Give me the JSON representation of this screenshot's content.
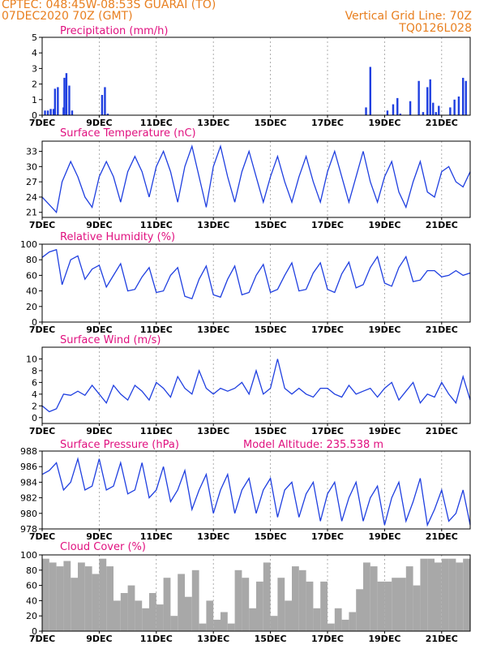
{
  "header": {
    "line1_left": "CPTEC:   048:45W-08:53S   GUARAI (TO)",
    "line2_left": "07DEC2020 70Z (GMT)",
    "line2_right": "Vertical Grid Line: 70Z",
    "line3_right": "TQ0126L028"
  },
  "colors": {
    "header": "#e87f1f",
    "title": "#e0107f",
    "series": "#1f3fe0",
    "cloud": "#a8a8a8"
  },
  "x_ticks": [
    "7DEC",
    "9DEC",
    "11DEC",
    "13DEC",
    "15DEC",
    "17DEC",
    "19DEC",
    "21DEC"
  ],
  "chart_data": [
    {
      "type": "bar",
      "title": "Precipitation (mm/h)",
      "ylim": [
        0,
        5
      ],
      "yticks": [
        "0",
        "1",
        "2",
        "3",
        "4",
        "5"
      ],
      "x_days": [
        0.1,
        0.2,
        0.3,
        0.4,
        0.45,
        0.55,
        0.75,
        0.78,
        0.85,
        0.95,
        1.05,
        2.1,
        2.2,
        2.3,
        11.35,
        11.5,
        12.1,
        12.3,
        12.45,
        12.55,
        12.9,
        13.2,
        13.35,
        13.5,
        13.6,
        13.7,
        13.8,
        13.9,
        14.3,
        14.45,
        14.6,
        14.75,
        14.85
      ],
      "values": [
        0.3,
        0.3,
        0.4,
        0.4,
        1.7,
        1.8,
        0.5,
        2.4,
        2.7,
        1.9,
        0.3,
        1.3,
        1.8,
        0.1,
        0.5,
        3.1,
        0.3,
        0.7,
        1.1,
        0.1,
        0.9,
        2.2,
        0.2,
        1.8,
        2.3,
        0.8,
        0.2,
        0.6,
        0.5,
        1.0,
        1.2,
        2.4,
        2.2
      ]
    },
    {
      "type": "line",
      "title": "Surface Temperature (nC)",
      "ylim": [
        20,
        35
      ],
      "yticks": [
        "21",
        "24",
        "27",
        "30",
        "33"
      ],
      "x_days": [
        0,
        0.25,
        0.5,
        0.7,
        1,
        1.25,
        1.5,
        1.75,
        2,
        2.25,
        2.5,
        2.75,
        3,
        3.25,
        3.5,
        3.75,
        4,
        4.25,
        4.5,
        4.75,
        5,
        5.25,
        5.5,
        5.75,
        6,
        6.25,
        6.5,
        6.75,
        7,
        7.25,
        7.5,
        7.75,
        8,
        8.25,
        8.5,
        8.75,
        9,
        9.25,
        9.5,
        9.75,
        10,
        10.25,
        10.5,
        10.75,
        11,
        11.25,
        11.5,
        11.75,
        12,
        12.25,
        12.5,
        12.75,
        13,
        13.25,
        13.5,
        13.75,
        14,
        14.25,
        14.5,
        14.75,
        15
      ],
      "values": [
        24,
        22.5,
        21,
        27,
        31,
        28,
        24,
        22,
        28,
        31,
        28,
        23,
        29,
        32,
        29,
        24,
        30,
        33,
        29,
        23,
        30,
        34,
        28,
        22,
        30,
        34,
        28,
        23,
        29,
        33,
        28,
        23,
        28,
        32,
        27,
        23,
        28,
        32,
        27,
        23,
        29,
        33,
        28,
        23,
        28,
        33,
        27,
        23,
        28,
        31,
        25,
        22,
        27,
        31,
        25,
        24,
        29,
        30,
        27,
        26,
        29
      ]
    },
    {
      "type": "line",
      "title": "Relative Humidity (%)",
      "ylim": [
        0,
        100
      ],
      "yticks": [
        "0",
        "20",
        "40",
        "60",
        "80",
        "100"
      ],
      "x_days": [
        0,
        0.25,
        0.5,
        0.7,
        1,
        1.25,
        1.5,
        1.75,
        2,
        2.25,
        2.5,
        2.75,
        3,
        3.25,
        3.5,
        3.75,
        4,
        4.25,
        4.5,
        4.75,
        5,
        5.25,
        5.5,
        5.75,
        6,
        6.25,
        6.5,
        6.75,
        7,
        7.25,
        7.5,
        7.75,
        8,
        8.25,
        8.5,
        8.75,
        9,
        9.25,
        9.5,
        9.75,
        10,
        10.25,
        10.5,
        10.75,
        11,
        11.25,
        11.5,
        11.75,
        12,
        12.25,
        12.5,
        12.75,
        13,
        13.25,
        13.5,
        13.75,
        14,
        14.25,
        14.5,
        14.75,
        15
      ],
      "values": [
        83,
        90,
        93,
        48,
        80,
        85,
        55,
        68,
        73,
        45,
        60,
        75,
        40,
        42,
        58,
        70,
        38,
        40,
        60,
        70,
        33,
        30,
        55,
        72,
        35,
        32,
        55,
        72,
        35,
        38,
        60,
        74,
        38,
        42,
        60,
        76,
        40,
        42,
        63,
        76,
        42,
        38,
        62,
        77,
        44,
        48,
        70,
        84,
        50,
        46,
        70,
        84,
        52,
        54,
        66,
        66,
        58,
        60,
        66,
        60,
        63
      ]
    },
    {
      "type": "line",
      "title": "Surface Wind (m/s)",
      "ylim": [
        -1,
        12
      ],
      "yticks": [
        "0",
        "2",
        "4",
        "6",
        "8",
        "10"
      ],
      "x_days": [
        0,
        0.25,
        0.5,
        0.75,
        1,
        1.25,
        1.5,
        1.75,
        2,
        2.25,
        2.5,
        2.75,
        3,
        3.25,
        3.5,
        3.75,
        4,
        4.25,
        4.5,
        4.75,
        5,
        5.25,
        5.5,
        5.75,
        6,
        6.25,
        6.5,
        6.75,
        7,
        7.25,
        7.5,
        7.75,
        8,
        8.25,
        8.5,
        8.75,
        9,
        9.25,
        9.5,
        9.75,
        10,
        10.25,
        10.5,
        10.75,
        11,
        11.25,
        11.5,
        11.75,
        12,
        12.25,
        12.5,
        12.75,
        13,
        13.25,
        13.5,
        13.75,
        14,
        14.25,
        14.5,
        14.75,
        15
      ],
      "values": [
        2,
        1,
        1.5,
        4,
        3.8,
        4.5,
        3.8,
        5.5,
        4,
        2.5,
        5.5,
        4,
        3,
        5.5,
        4.5,
        3,
        6,
        5,
        3.5,
        7,
        5,
        4,
        8,
        5,
        4,
        5,
        4.5,
        5,
        6,
        4,
        8,
        4,
        5,
        10,
        5,
        4,
        5,
        4,
        3.5,
        5,
        5,
        4,
        3.5,
        5.5,
        4,
        4.5,
        5,
        3.5,
        5,
        6,
        3,
        4.5,
        6,
        2.5,
        4,
        3.5,
        6,
        4,
        2.5,
        7,
        3
      ]
    },
    {
      "type": "line",
      "title": "Surface Pressure (hPa)",
      "annotation": "Model Altitude: 235.538 m",
      "ylim": [
        978,
        988
      ],
      "yticks": [
        "978",
        "980",
        "982",
        "984",
        "986",
        "988"
      ],
      "x_days": [
        0,
        0.25,
        0.5,
        0.75,
        1,
        1.25,
        1.5,
        1.75,
        2,
        2.25,
        2.5,
        2.75,
        3,
        3.25,
        3.5,
        3.75,
        4,
        4.25,
        4.5,
        4.75,
        5,
        5.25,
        5.5,
        5.75,
        6,
        6.25,
        6.5,
        6.75,
        7,
        7.25,
        7.5,
        7.75,
        8,
        8.25,
        8.5,
        8.75,
        9,
        9.25,
        9.5,
        9.75,
        10,
        10.25,
        10.5,
        10.75,
        11,
        11.25,
        11.5,
        11.75,
        12,
        12.25,
        12.5,
        12.75,
        13,
        13.25,
        13.5,
        13.75,
        14,
        14.25,
        14.5,
        14.75,
        15
      ],
      "values": [
        985,
        985.5,
        986.5,
        983,
        984,
        987,
        983,
        983.5,
        987,
        983,
        983.5,
        986.5,
        982.5,
        983,
        986.5,
        982,
        983,
        986,
        981.5,
        983,
        985.5,
        980.5,
        983,
        985,
        980,
        983,
        985,
        980,
        983,
        984.5,
        980,
        983,
        984.5,
        979.5,
        983,
        984,
        979.5,
        982.5,
        984,
        979,
        982.5,
        984,
        979,
        982,
        984,
        979,
        982,
        983.5,
        978.5,
        982,
        984,
        979,
        981.5,
        984.5,
        978.5,
        980.5,
        983,
        979,
        980,
        983,
        978.5
      ]
    },
    {
      "type": "area",
      "title": "Cloud Cover (%)",
      "ylim": [
        0,
        100
      ],
      "yticks": [
        "0",
        "20",
        "40",
        "60",
        "80",
        "100"
      ],
      "x_days": [
        0,
        0.25,
        0.5,
        0.75,
        1,
        1.25,
        1.5,
        1.75,
        2,
        2.25,
        2.5,
        2.75,
        3,
        3.25,
        3.5,
        3.75,
        4,
        4.25,
        4.5,
        4.75,
        5,
        5.25,
        5.5,
        5.75,
        6,
        6.25,
        6.5,
        6.75,
        7,
        7.25,
        7.5,
        7.75,
        8,
        8.25,
        8.5,
        8.75,
        9,
        9.25,
        9.5,
        9.75,
        10,
        10.25,
        10.5,
        10.75,
        11,
        11.25,
        11.5,
        11.75,
        12,
        12.25,
        12.5,
        12.75,
        13,
        13.25,
        13.5,
        13.75,
        14,
        14.25,
        14.5,
        14.75,
        15
      ],
      "values": [
        95,
        90,
        85,
        92,
        70,
        90,
        85,
        75,
        95,
        85,
        40,
        50,
        60,
        40,
        30,
        50,
        35,
        70,
        20,
        75,
        45,
        80,
        10,
        40,
        15,
        25,
        10,
        80,
        70,
        30,
        65,
        90,
        20,
        70,
        40,
        85,
        80,
        65,
        30,
        65,
        10,
        30,
        15,
        25,
        55,
        90,
        85,
        65,
        65,
        70,
        70,
        85,
        60,
        95,
        95,
        90,
        95,
        95,
        90,
        95,
        92
      ]
    }
  ]
}
